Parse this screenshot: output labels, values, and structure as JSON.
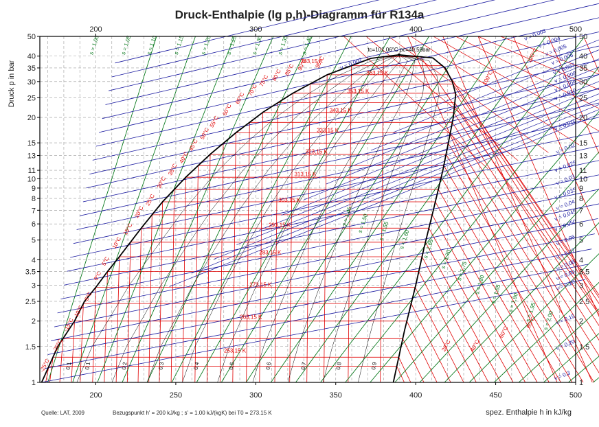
{
  "chart_data": {
    "type": "line",
    "title": "Druck-Enthalpie (lg p,h)-Diagramm für R134a",
    "xlabel": "spez. Enthalpie h in kJ/kg",
    "ylabel": "Druck p in bar",
    "xlim": [
      165,
      500
    ],
    "ylim": [
      1,
      50
    ],
    "yscale": "log",
    "x_ticks": [
      200,
      250,
      300,
      350,
      400,
      450,
      500
    ],
    "x_top_ticks": [
      200,
      300,
      400,
      500
    ],
    "y_ticks": [
      1,
      1.5,
      2,
      2.5,
      3,
      3.5,
      4,
      5,
      6,
      7,
      8,
      9,
      10,
      11,
      13,
      15,
      20,
      25,
      30,
      35,
      40,
      50
    ],
    "y_tick_labels": [
      "1",
      "1.5",
      "2",
      "2.5",
      "3",
      "3.5",
      "4",
      "5",
      "6",
      "7",
      "8",
      "9",
      "10",
      "11",
      "13",
      "15",
      "20",
      "25",
      "30",
      "35",
      "40",
      "50"
    ],
    "critical_point_label": "tc=101.06°C  pc=40.59bar",
    "footnote_source": "Quelle: LAT, 2009",
    "footnote_reference": "Bezugspunkt h' = 200 kJ/kg ; s' = 1.00 kJ/(kgK) bei T0 = 273.15 K",
    "colors": {
      "saturation": "#000000",
      "isotherm": "#e00000",
      "isentrope": "#0a7a1e",
      "isochore": "#1a1aa0",
      "quality": "#000000",
      "grid": "#9a9a9a"
    },
    "saturation_curve": {
      "liquid": [
        [
          166.1,
          1.0
        ],
        [
          176.2,
          1.5
        ],
        [
          186.7,
          2.0
        ],
        [
          192.9,
          2.5
        ],
        [
          200.0,
          2.93
        ],
        [
          207.3,
          3.5
        ],
        [
          214.3,
          4.1
        ],
        [
          228.4,
          5.72
        ],
        [
          241.7,
          7.7
        ],
        [
          256.4,
          10.2
        ],
        [
          271.6,
          13.2
        ],
        [
          287.5,
          16.8
        ],
        [
          304.5,
          21.2
        ],
        [
          323.2,
          26.3
        ],
        [
          344.6,
          32.4
        ],
        [
          372.0,
          39.0
        ],
        [
          389.6,
          40.59
        ]
      ],
      "vapor": [
        [
          389.6,
          40.59
        ],
        [
          410.7,
          39.2
        ],
        [
          418.4,
          35.0
        ],
        [
          422.9,
          30.0
        ],
        [
          425.0,
          26.0
        ],
        [
          423.5,
          20.0
        ],
        [
          420.4,
          15.0
        ],
        [
          417.0,
          11.0
        ],
        [
          411.0,
          7.0
        ],
        [
          405.0,
          4.5
        ],
        [
          400.0,
          3.0
        ],
        [
          393.0,
          1.8
        ],
        [
          386.0,
          1.0
        ]
      ]
    },
    "isotherm_labels": [
      {
        "text": "-25°C",
        "h": 169,
        "p": 1.2
      },
      {
        "text": "-20°C",
        "h": 177,
        "p": 1.5
      },
      {
        "text": "-15°C",
        "h": 184,
        "p": 1.9
      },
      {
        "text": "-10°C",
        "h": 190,
        "p": 2.2
      },
      {
        "text": "-5°C",
        "h": 196,
        "p": 2.6
      },
      {
        "text": "0°C",
        "h": 202,
        "p": 3.3
      },
      {
        "text": "5°C",
        "h": 207,
        "p": 3.9
      },
      {
        "text": "10°C",
        "h": 214,
        "p": 4.8
      },
      {
        "text": "15°C",
        "h": 221,
        "p": 5.6
      },
      {
        "text": "20°C",
        "h": 228,
        "p": 6.8
      },
      {
        "text": "25°C",
        "h": 235,
        "p": 7.8
      },
      {
        "text": "30°C",
        "h": 242,
        "p": 9.5
      },
      {
        "text": "35°C",
        "h": 249,
        "p": 11
      },
      {
        "text": "40°C",
        "h": 256,
        "p": 12.6
      },
      {
        "text": "45°C",
        "h": 262,
        "p": 14.5
      },
      {
        "text": "50°C",
        "h": 269,
        "p": 16.5
      },
      {
        "text": "55°C",
        "h": 275,
        "p": 18.9
      },
      {
        "text": "60°C",
        "h": 283,
        "p": 21.6
      },
      {
        "text": "65°C",
        "h": 291,
        "p": 24.6
      },
      {
        "text": "70°C",
        "h": 299,
        "p": 27
      },
      {
        "text": "75°C",
        "h": 306,
        "p": 30
      },
      {
        "text": "80°C",
        "h": 314,
        "p": 32
      },
      {
        "text": "85°C",
        "h": 322,
        "p": 34
      },
      {
        "text": "90°C",
        "h": 330,
        "p": 36
      },
      {
        "text": "95°C",
        "h": 341,
        "p": 37
      },
      {
        "text": "20°C",
        "h": 420,
        "p": 1.5
      },
      {
        "text": "40°C",
        "h": 438,
        "p": 1.5
      },
      {
        "text": "60°C",
        "h": 456,
        "p": 1.75
      },
      {
        "text": "80°C",
        "h": 473,
        "p": 1.95
      },
      {
        "text": "100°C",
        "h": 446,
        "p": 31
      },
      {
        "text": "120°C",
        "h": 474,
        "p": 40
      }
    ],
    "isotherm_kelvin_labels": [
      {
        "text": "253,15 K",
        "h": 287,
        "p": 1.4
      },
      {
        "text": "263,15 K",
        "h": 297,
        "p": 2.05
      },
      {
        "text": "273,15 K",
        "h": 303,
        "p": 2.95
      },
      {
        "text": "283,15 K",
        "h": 309,
        "p": 4.25
      },
      {
        "text": "293,15 K",
        "h": 315,
        "p": 5.8
      },
      {
        "text": "303,15 K",
        "h": 321,
        "p": 7.7
      },
      {
        "text": "313,15 K",
        "h": 331,
        "p": 10.3
      },
      {
        "text": "323,15 K",
        "h": 338,
        "p": 13.3
      },
      {
        "text": "333,15 K",
        "h": 345,
        "p": 16.9
      },
      {
        "text": "343,15 K",
        "h": 353,
        "p": 21.2
      },
      {
        "text": "353,15 K",
        "h": 364,
        "p": 26.4
      },
      {
        "text": "363,15 K",
        "h": 376,
        "p": 32.4
      },
      {
        "text": "263,15 K",
        "h": 335,
        "p": 37
      }
    ],
    "isentrope_labels": [
      {
        "text": "s = 1,00",
        "h": 200,
        "p": 45
      },
      {
        "text": "s = 1,05",
        "h": 220,
        "p": 45
      },
      {
        "text": "s = 1,10",
        "h": 236,
        "p": 45
      },
      {
        "text": "s = 1,15",
        "h": 253,
        "p": 45
      },
      {
        "text": "s = 1,20",
        "h": 270,
        "p": 45
      },
      {
        "text": "s = 1,25",
        "h": 286,
        "p": 45
      },
      {
        "text": "s = 1,30",
        "h": 302,
        "p": 45
      },
      {
        "text": "s = 1,35",
        "h": 318,
        "p": 45
      },
      {
        "text": "s = 1,40",
        "h": 333,
        "p": 45
      },
      {
        "text": "s = 1,45",
        "h": 358,
        "p": 6.5
      },
      {
        "text": "s = 1,50",
        "h": 368,
        "p": 6
      },
      {
        "text": "s = 1,55",
        "h": 381,
        "p": 5.5
      },
      {
        "text": "s = 1,60",
        "h": 394,
        "p": 5
      },
      {
        "text": "s = 1,65",
        "h": 409,
        "p": 4.5
      },
      {
        "text": "s = 1,70",
        "h": 420,
        "p": 4.0
      },
      {
        "text": "s = 1,75",
        "h": 430,
        "p": 3.5
      },
      {
        "text": "s = 1,80",
        "h": 441,
        "p": 3.0
      },
      {
        "text": "s = 1,85",
        "h": 451,
        "p": 2.7
      },
      {
        "text": "s = 1,90",
        "h": 462,
        "p": 2.45
      },
      {
        "text": "s = 1,95",
        "h": 473,
        "p": 2.2
      },
      {
        "text": "s = 2,00",
        "h": 484,
        "p": 2.0
      }
    ],
    "isochore_labels": [
      {
        "text": "v = 0,002",
        "h": 360,
        "p": 36
      },
      {
        "text": "v = 0,003",
        "h": 475,
        "p": 50
      },
      {
        "text": "v = 0,004",
        "h": 484,
        "p": 46
      },
      {
        "text": "v = 0,005",
        "h": 488,
        "p": 42
      },
      {
        "text": "v = 0,006",
        "h": 492,
        "p": 38
      },
      {
        "text": "v = 0,007",
        "h": 493,
        "p": 34
      },
      {
        "text": "v = 0,008",
        "h": 494,
        "p": 31
      },
      {
        "text": "v = 0,009",
        "h": 494,
        "p": 28
      },
      {
        "text": "v = 0,010",
        "h": 494,
        "p": 25.5
      },
      {
        "text": "v = 0,015",
        "h": 494,
        "p": 18
      },
      {
        "text": "v = 0,02",
        "h": 494,
        "p": 13.8
      },
      {
        "text": "v = 0,025",
        "h": 494,
        "p": 11.3
      },
      {
        "text": "v = 0,03",
        "h": 494,
        "p": 9.7
      },
      {
        "text": "v = 0,035",
        "h": 494,
        "p": 8.3
      },
      {
        "text": "v = 0,04",
        "h": 494,
        "p": 7.3
      },
      {
        "text": "v = 0,045",
        "h": 494,
        "p": 6.5
      },
      {
        "text": "v = 0,050",
        "h": 494,
        "p": 5.8
      },
      {
        "text": "v = 0,06",
        "h": 494,
        "p": 4.9
      },
      {
        "text": "v = 0,07",
        "h": 494,
        "p": 4.2
      },
      {
        "text": "v = 0,08",
        "h": 494,
        "p": 3.7
      },
      {
        "text": "v = 0,09",
        "h": 494,
        "p": 3.3
      },
      {
        "text": "v = 0,10",
        "h": 494,
        "p": 2.95
      },
      {
        "text": "v = 0,15",
        "h": 494,
        "p": 2.0
      },
      {
        "text": "v = 0,20",
        "h": 494,
        "p": 1.5
      },
      {
        "text": "v = 0,3",
        "h": 492,
        "p": 1.06
      }
    ],
    "quality_labels": [
      {
        "text": "0,1",
        "h": 196,
        "p": 1.2
      },
      {
        "text": "0,2",
        "h": 219,
        "p": 1.2
      },
      {
        "text": "0,3",
        "h": 242,
        "p": 1.2
      },
      {
        "text": "0,4",
        "h": 264,
        "p": 1.2
      },
      {
        "text": "0,5",
        "h": 286,
        "p": 1.2
      },
      {
        "text": "0,6",
        "h": 309,
        "p": 1.2
      },
      {
        "text": "0,7",
        "h": 331,
        "p": 1.2
      },
      {
        "text": "0,8",
        "h": 353,
        "p": 1.2
      },
      {
        "text": "0,9",
        "h": 375,
        "p": 1.2
      }
    ],
    "x_fraction_labels_left": [
      {
        "text": "0,1",
        "h": 184,
        "p": 1.2
      }
    ]
  }
}
